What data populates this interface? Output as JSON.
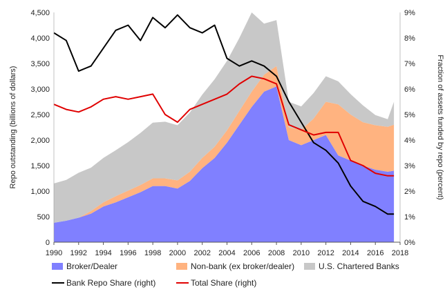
{
  "chart_data": {
    "type": "area",
    "xlabel": "",
    "ylabel_left": "Repo outstanding (billions of dollars)",
    "ylabel_right": "Fraction of assets funded by repo (percent)",
    "xlim": [
      1990,
      2018
    ],
    "ylim_left": [
      0,
      4500
    ],
    "ylim_right": [
      0,
      9
    ],
    "x_ticks": [
      1990,
      1992,
      1994,
      1996,
      1998,
      2000,
      2002,
      2004,
      2006,
      2008,
      2010,
      2012,
      2014,
      2016,
      2018
    ],
    "y_ticks_left": [
      0,
      500,
      1000,
      1500,
      2000,
      2500,
      3000,
      3500,
      4000,
      4500
    ],
    "y_ticks_left_labels": [
      "0",
      "500",
      "1,000",
      "1,500",
      "2,000",
      "2,500",
      "3,000",
      "3,500",
      "4,000",
      "4,500"
    ],
    "y_ticks_right_labels": [
      "0%",
      "1%",
      "2%",
      "3%",
      "4%",
      "5%",
      "6%",
      "7%",
      "8%",
      "9%"
    ],
    "y_ticks_right": [
      0,
      1,
      2,
      3,
      4,
      5,
      6,
      7,
      8,
      9
    ],
    "grid": false,
    "legend_position": "bottom",
    "x": [
      1990,
      1991,
      1992,
      1993,
      1994,
      1995,
      1996,
      1997,
      1998,
      1999,
      2000,
      2001,
      2002,
      2003,
      2004,
      2005,
      2006,
      2007,
      2008,
      2009,
      2010,
      2011,
      2012,
      2013,
      2014,
      2015,
      2016,
      2017,
      2017.5
    ],
    "series": [
      {
        "name": "Broker/Dealer",
        "kind": "stacked-area",
        "axis": "left",
        "color": "#8080ff",
        "values": [
          380,
          420,
          480,
          560,
          700,
          780,
          880,
          980,
          1100,
          1100,
          1050,
          1200,
          1450,
          1650,
          1950,
          2300,
          2650,
          2950,
          3050,
          2000,
          1900,
          2000,
          2100,
          1700,
          1600,
          1500,
          1420,
          1380,
          1400
        ]
      },
      {
        "name": "Non-bank (ex broker/dealer)",
        "kind": "stacked-area",
        "axis": "left",
        "color": "#ffb380",
        "values": [
          0,
          0,
          0,
          50,
          80,
          120,
          130,
          140,
          150,
          150,
          160,
          180,
          200,
          220,
          240,
          270,
          300,
          330,
          400,
          250,
          300,
          420,
          650,
          1000,
          900,
          850,
          870,
          880,
          900
        ]
      },
      {
        "name": "U.S. Chartered Banks",
        "kind": "stacked-area",
        "axis": "left",
        "color": "#c8c8c8",
        "values": [
          770,
          800,
          880,
          850,
          870,
          900,
          950,
          1020,
          1090,
          1110,
          1080,
          1160,
          1240,
          1320,
          1360,
          1430,
          1550,
          1000,
          900,
          500,
          460,
          500,
          500,
          450,
          400,
          330,
          200,
          150,
          450
        ]
      },
      {
        "name": "Bank Repo Share (right)",
        "kind": "line",
        "axis": "right",
        "color": "#000000",
        "values": [
          8.2,
          7.9,
          6.7,
          6.9,
          7.6,
          8.3,
          8.5,
          7.9,
          8.8,
          8.4,
          8.9,
          8.4,
          8.2,
          8.5,
          7.2,
          6.9,
          7.1,
          6.9,
          6.5,
          5.5,
          4.7,
          3.9,
          3.6,
          3.1,
          2.2,
          1.6,
          1.4,
          1.1,
          1.1
        ]
      },
      {
        "name": "Total Share (right)",
        "kind": "line",
        "axis": "right",
        "color": "#e00000",
        "values": [
          5.4,
          5.2,
          5.1,
          5.3,
          5.6,
          5.7,
          5.6,
          5.7,
          5.8,
          5.0,
          4.7,
          5.2,
          5.4,
          5.6,
          5.8,
          6.2,
          6.5,
          6.4,
          6.2,
          4.6,
          4.4,
          4.2,
          4.3,
          4.3,
          3.2,
          3.0,
          2.7,
          2.6,
          2.6
        ]
      }
    ]
  }
}
